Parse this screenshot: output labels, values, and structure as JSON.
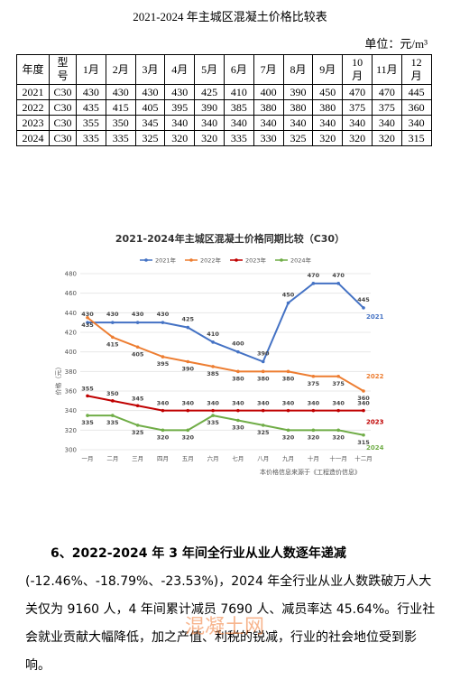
{
  "table": {
    "title": "2021-2024 年主城区混凝土价格比较表",
    "unit": "单位：元/m³",
    "header": [
      "年度",
      "型号",
      "1月",
      "2月",
      "3月",
      "4月",
      "5月",
      "6月",
      "7月",
      "8月",
      "9月",
      "10月",
      "11月",
      "12月"
    ],
    "rows": [
      [
        "2021",
        "C30",
        "430",
        "430",
        "430",
        "430",
        "425",
        "410",
        "400",
        "390",
        "450",
        "470",
        "470",
        "445"
      ],
      [
        "2022",
        "C30",
        "435",
        "415",
        "405",
        "395",
        "390",
        "385",
        "380",
        "380",
        "380",
        "375",
        "375",
        "360"
      ],
      [
        "2023",
        "C30",
        "355",
        "350",
        "345",
        "340",
        "340",
        "340",
        "340",
        "340",
        "340",
        "340",
        "340",
        "340"
      ],
      [
        "2024",
        "C30",
        "335",
        "335",
        "325",
        "320",
        "320",
        "335",
        "330",
        "325",
        "320",
        "320",
        "320",
        "315"
      ]
    ]
  },
  "chart_data": {
    "type": "line",
    "title": "2021-2024年主城区混凝土价格同期比较（C30）",
    "y_label": "价格（元）",
    "note": "本价格信息来源于《工程造价信息》",
    "categories": [
      "一月",
      "二月",
      "三月",
      "四月",
      "五月",
      "六月",
      "七月",
      "八月",
      "九月",
      "十月",
      "十一月",
      "十二月"
    ],
    "ylim": [
      300,
      480
    ],
    "yticks": [
      300,
      320,
      340,
      360,
      380,
      400,
      420,
      440,
      460,
      480
    ],
    "grid": true,
    "series": [
      {
        "name": "2021年",
        "end_label": "2021",
        "color": "#4472c4",
        "values": [
          430,
          430,
          430,
          430,
          425,
          410,
          400,
          390,
          450,
          470,
          470,
          445
        ]
      },
      {
        "name": "2022年",
        "end_label": "2022",
        "color": "#ed7d31",
        "values": [
          435,
          415,
          405,
          395,
          390,
          385,
          380,
          380,
          380,
          375,
          375,
          360
        ]
      },
      {
        "name": "2023年",
        "end_label": "2023",
        "color": "#c00000",
        "values": [
          355,
          350,
          345,
          340,
          340,
          340,
          340,
          340,
          340,
          340,
          340,
          340
        ]
      },
      {
        "name": "2024年",
        "end_label": "2024",
        "color": "#70ad47",
        "values": [
          335,
          335,
          325,
          320,
          320,
          335,
          330,
          325,
          320,
          320,
          320,
          315
        ]
      }
    ]
  },
  "paragraph": {
    "lead": "6、2022-2024 年 3 年间全行业从业人数逐年递减",
    "body": "(-12.46%、-18.79%、-23.53%)，2024 年全行业从业人数跌破万人大关仅为 9160 人，4 年间累计减员 7690 人、减员率达 45.64%。行业社会就业贡献大幅降低，加之产值、利税的锐减，行业的社会地位受到影响。"
  },
  "watermark": "混凝土网"
}
